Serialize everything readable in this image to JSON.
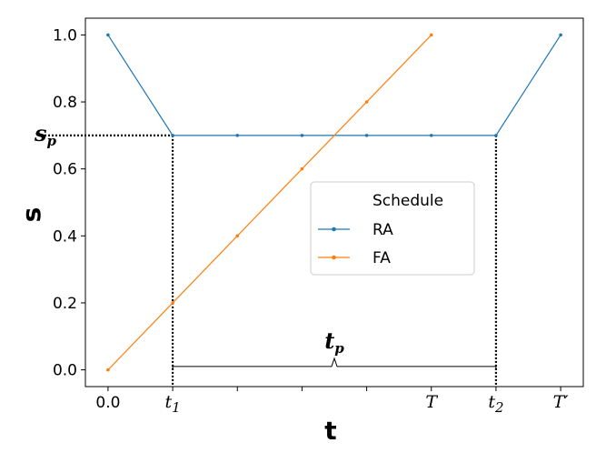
{
  "chart_data": {
    "type": "line",
    "xlabel": "t",
    "ylabel": "s",
    "xlim": [
      -0.35,
      7.35
    ],
    "ylim": [
      -0.05,
      1.05
    ],
    "x_ticks": [
      {
        "x": 0,
        "label": "0.0"
      },
      {
        "x": 1,
        "label": "t",
        "sub": "1"
      },
      {
        "x": 5,
        "label": "T"
      },
      {
        "x": 6,
        "label": "t",
        "sub": "2"
      },
      {
        "x": 7,
        "label": "T′"
      }
    ],
    "y_ticks": [
      {
        "y": 0.0,
        "label": "0.0"
      },
      {
        "y": 0.2,
        "label": "0.2"
      },
      {
        "y": 0.4,
        "label": "0.4"
      },
      {
        "y": 0.6,
        "label": "0.6"
      },
      {
        "y": 0.8,
        "label": "0.8"
      },
      {
        "y": 1.0,
        "label": "1.0"
      }
    ],
    "series": [
      {
        "name": "RA",
        "color": "#1f77b4",
        "x": [
          0,
          1,
          2,
          3,
          4,
          5,
          6,
          7
        ],
        "y": [
          1.0,
          0.7,
          0.7,
          0.7,
          0.7,
          0.7,
          0.7,
          1.0
        ]
      },
      {
        "name": "FA",
        "color": "#ff7f0e",
        "x": [
          0,
          1,
          2,
          3,
          4,
          5
        ],
        "y": [
          0.0,
          0.2,
          0.4,
          0.6,
          0.8,
          1.0
        ]
      }
    ],
    "legend": {
      "title": "Schedule",
      "placement": "center-right"
    },
    "annotations": {
      "sp": {
        "label": "s",
        "sub": "p",
        "y": 0.7
      },
      "tp": {
        "label": "t",
        "sub": "p",
        "x_from": 1,
        "x_to": 6,
        "y": 0.01
      },
      "dotted_verticals_x": [
        1,
        6
      ]
    }
  }
}
